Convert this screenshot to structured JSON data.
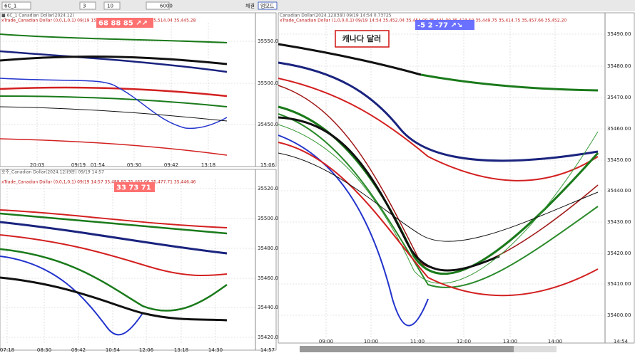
{
  "toolbar": {
    "symbol": "6C_1",
    "interval": "10",
    "count": "3",
    "amount": "6000",
    "trade": "체결",
    "mode": "업모드"
  },
  "panels": [
    {
      "header": "■ 6C_1 Canadian Dollar(2024.12)",
      "info": "xTrade_Canadian Dollar (0,0,1,0,1) 09/19 15:06  35,543.85 35,479.66 35,514.04 35,445.28",
      "badge": "68 88 85 ↗↗",
      "yticks": [
        "35550.00",
        "35500.00",
        "35450.00"
      ],
      "xticks": [
        "20:03",
        "09/19",
        "01:54",
        "05:30",
        "09:42",
        "13:18",
        "15:06"
      ]
    },
    {
      "header": "호주_Canadian Dollar(2024.12)(9분) 09/19 14:57",
      "info": "xTrade_Canadian Dollar (0,0,1,0,1) 09/19 14:57  35,489.93 35,462.06 35,477.71 35,446.46",
      "badge": "33 73 71 ↗↗",
      "yticks": [
        "35520.00",
        "35500.00",
        "35480.00",
        "35460.00",
        "35440.00",
        "35420.00"
      ],
      "xticks": [
        "07:18",
        "08:30",
        "09:42",
        "10:54",
        "12:06",
        "13:18",
        "14:30",
        "14:57"
      ]
    },
    {
      "header": "Canadian Dollar(2024.12)(3분) 09/19 14:54  0.73725",
      "info": "xTrade_Canadian Dollar (1,0,0,0,1) 09/19 14:54  35,452.04 35,454.09 35,441.00 35,423.50 35,449.75 35,414.75 35,457.66 35,452.20",
      "badge": "-5  2  -77 ↗↘",
      "label": "캐나다 달러",
      "yticks": [
        "35490.00",
        "35480.00",
        "35470.00",
        "35460.00",
        "35450.00",
        "35440.00",
        "35430.00",
        "35420.00",
        "35410.00",
        "35400.00"
      ],
      "xticks": [
        "09:00",
        "10:00",
        "11:00",
        "12:00",
        "13:00",
        "14:00",
        "14:54"
      ]
    }
  ]
}
